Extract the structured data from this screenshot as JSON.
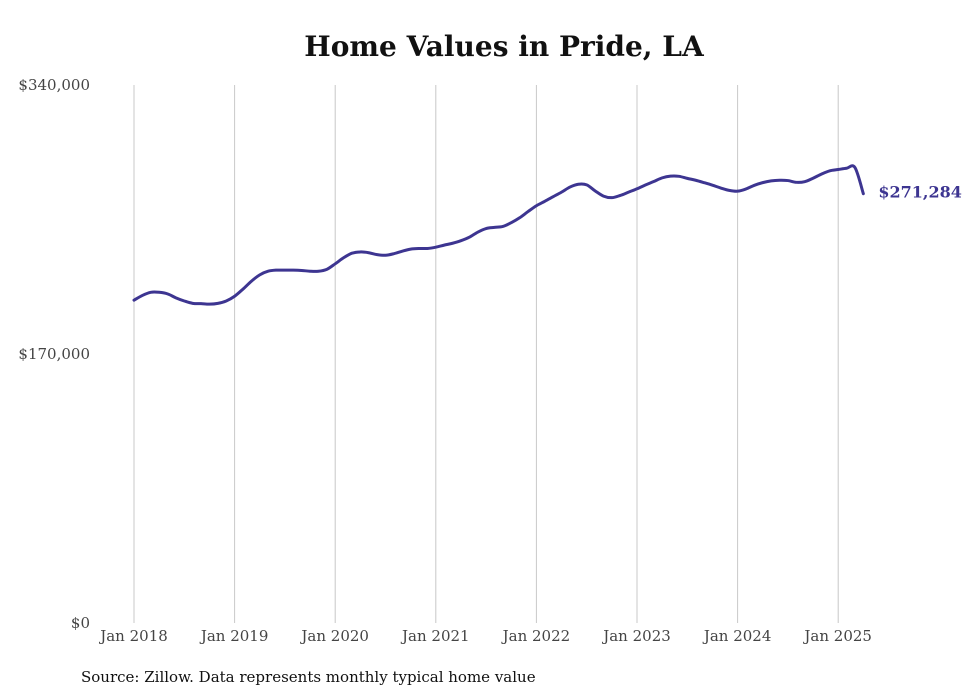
{
  "chart_data": {
    "type": "line",
    "title": "Home Values in Pride, LA",
    "xlabel": "",
    "ylabel": "",
    "ylim": [
      0,
      340000
    ],
    "y_ticks": [
      "$0",
      "$170,000",
      "$340,000"
    ],
    "y_tick_values": [
      0,
      170000,
      340000
    ],
    "x_ticks": [
      "Jan 2018",
      "Jan 2019",
      "Jan 2020",
      "Jan 2021",
      "Jan 2022",
      "Jan 2023",
      "Jan 2024",
      "Jan 2025"
    ],
    "x_tick_values": [
      "2018-01",
      "2019-01",
      "2020-01",
      "2021-01",
      "2022-01",
      "2023-01",
      "2024-01",
      "2025-01"
    ],
    "grid": "vertical",
    "color": "#3d3591",
    "end_label": "$271,284",
    "series": [
      {
        "x": [
          "2018-01",
          "2018-02",
          "2018-03",
          "2018-04",
          "2018-05",
          "2018-06",
          "2018-07",
          "2018-08",
          "2018-09",
          "2018-10",
          "2018-11",
          "2018-12",
          "2019-01",
          "2019-02",
          "2019-03",
          "2019-04",
          "2019-05",
          "2019-06",
          "2019-07",
          "2019-08",
          "2019-09",
          "2019-10",
          "2019-11",
          "2019-12",
          "2020-01",
          "2020-02",
          "2020-03",
          "2020-04",
          "2020-05",
          "2020-06",
          "2020-07",
          "2020-08",
          "2020-09",
          "2020-10",
          "2020-11",
          "2020-12",
          "2021-01",
          "2021-02",
          "2021-03",
          "2021-04",
          "2021-05",
          "2021-06",
          "2021-07",
          "2021-08",
          "2021-09",
          "2021-10",
          "2021-11",
          "2021-12",
          "2022-01",
          "2022-02",
          "2022-03",
          "2022-04",
          "2022-05",
          "2022-06",
          "2022-07",
          "2022-08",
          "2022-09",
          "2022-10",
          "2022-11",
          "2022-12",
          "2023-01",
          "2023-02",
          "2023-03",
          "2023-04",
          "2023-05",
          "2023-06",
          "2023-07",
          "2023-08",
          "2023-09",
          "2023-10",
          "2023-11",
          "2023-12",
          "2024-01",
          "2024-02",
          "2024-03",
          "2024-04",
          "2024-05",
          "2024-06",
          "2024-07",
          "2024-08",
          "2024-09",
          "2024-10",
          "2024-11",
          "2024-12",
          "2025-01",
          "2025-02",
          "2025-03",
          "2025-04"
        ],
        "y": [
          204000,
          207000,
          209000,
          209000,
          208000,
          205500,
          203500,
          202000,
          201800,
          201500,
          202000,
          203500,
          206500,
          211000,
          216000,
          220000,
          222300,
          223000,
          223000,
          223000,
          222800,
          222300,
          222300,
          223500,
          227000,
          230800,
          233700,
          234500,
          234000,
          232800,
          232400,
          233400,
          235000,
          236300,
          236700,
          236700,
          237500,
          238800,
          240000,
          241600,
          243800,
          247000,
          249300,
          250000,
          250600,
          253000,
          256100,
          260000,
          263700,
          266500,
          269400,
          272300,
          275500,
          277300,
          276900,
          273100,
          269800,
          268800,
          270200,
          272300,
          274400,
          276800,
          279000,
          281300,
          282400,
          282300,
          281000,
          279800,
          278300,
          276700,
          274900,
          273400,
          272900,
          274300,
          276600,
          278300,
          279400,
          279800,
          279600,
          278500,
          278900,
          281100,
          283700,
          285800,
          286600,
          287400,
          287800,
          271284
        ]
      }
    ]
  },
  "source_note": "Source: Zillow. Data represents monthly typical home value"
}
